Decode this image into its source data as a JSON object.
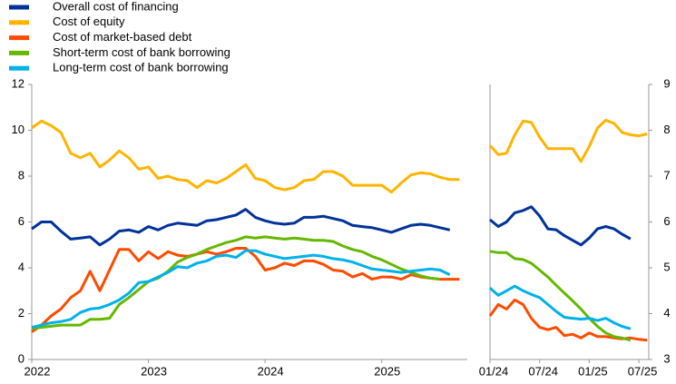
{
  "chart_data": [
    {
      "type": "line",
      "x": [
        0,
        1,
        2,
        3,
        4,
        5,
        6,
        7,
        8,
        9,
        10,
        11,
        12,
        13,
        14,
        15,
        16,
        17,
        18,
        19,
        20,
        21,
        22,
        23,
        24,
        25,
        26,
        27,
        28,
        29,
        30,
        31,
        32,
        33,
        34,
        35,
        36,
        37,
        38,
        39,
        40,
        41,
        42,
        43,
        44
      ],
      "xlim": [
        0,
        44.8
      ],
      "xticks": [
        {
          "value": 0,
          "label": "2022"
        },
        {
          "value": 12,
          "label": "2023"
        },
        {
          "value": 24,
          "label": "2024"
        },
        {
          "value": 36,
          "label": "2025"
        }
      ],
      "ylim": [
        0,
        12
      ],
      "yticks": [
        0,
        2,
        4,
        6,
        8,
        10,
        12
      ],
      "series": [
        {
          "name": "Overall cost of financing",
          "color": "#003299",
          "values": [
            5.7,
            6.0,
            6.0,
            5.6,
            5.25,
            5.3,
            5.35,
            5.0,
            5.25,
            5.6,
            5.65,
            5.55,
            5.8,
            5.65,
            5.85,
            5.95,
            5.9,
            5.85,
            6.05,
            6.1,
            6.2,
            6.3,
            6.55,
            6.2,
            6.05,
            5.95,
            5.9,
            5.95,
            6.2,
            6.2,
            6.25,
            6.15,
            6.05,
            5.85,
            5.8,
            5.75,
            5.65,
            5.55,
            5.7,
            5.85,
            5.9,
            5.85,
            5.75,
            5.65,
            null
          ]
        },
        {
          "name": "Cost of equity",
          "color": "#ffb400",
          "values": [
            10.1,
            10.4,
            10.2,
            9.9,
            9.0,
            8.8,
            9.0,
            8.4,
            8.7,
            9.1,
            8.8,
            8.3,
            8.4,
            7.9,
            8.0,
            7.85,
            7.8,
            7.5,
            7.8,
            7.7,
            7.9,
            8.2,
            8.5,
            7.9,
            7.8,
            7.5,
            7.4,
            7.5,
            7.8,
            7.85,
            8.2,
            8.2,
            8.0,
            7.6,
            7.6,
            7.6,
            7.6,
            7.3,
            7.7,
            8.05,
            8.15,
            8.1,
            7.95,
            7.85,
            7.85
          ]
        },
        {
          "name": "Cost of market-based debt",
          "color": "#ff4b00",
          "values": [
            1.2,
            1.5,
            1.9,
            2.2,
            2.7,
            3.0,
            3.85,
            3.0,
            3.9,
            4.8,
            4.8,
            4.3,
            4.7,
            4.4,
            4.7,
            4.55,
            4.5,
            4.6,
            4.7,
            4.6,
            4.7,
            4.85,
            4.85,
            4.5,
            3.9,
            4.0,
            4.2,
            4.1,
            4.3,
            4.3,
            4.15,
            3.9,
            3.85,
            3.6,
            3.75,
            3.5,
            3.6,
            3.6,
            3.5,
            3.7,
            3.6,
            3.55,
            3.5,
            3.5,
            3.5
          ]
        },
        {
          "name": "Short-term cost of bank borrowing",
          "color": "#65b800",
          "values": [
            1.35,
            1.4,
            1.45,
            1.5,
            1.5,
            1.5,
            1.75,
            1.75,
            1.8,
            2.4,
            2.7,
            3.05,
            3.4,
            3.55,
            3.85,
            4.25,
            4.45,
            4.6,
            4.8,
            4.95,
            5.1,
            5.2,
            5.35,
            5.3,
            5.35,
            5.3,
            5.25,
            5.3,
            5.25,
            5.2,
            5.2,
            5.15,
            4.95,
            4.8,
            4.7,
            4.5,
            4.35,
            4.15,
            3.95,
            3.8,
            3.65,
            3.55,
            3.5,
            null,
            null
          ]
        },
        {
          "name": "Long-term cost of bank borrowing",
          "color": "#00b1ea",
          "values": [
            1.4,
            1.5,
            1.6,
            1.65,
            1.75,
            2.05,
            2.2,
            2.25,
            2.4,
            2.6,
            2.9,
            3.35,
            3.4,
            3.6,
            3.8,
            4.05,
            4.0,
            4.2,
            4.3,
            4.5,
            4.55,
            4.45,
            4.75,
            4.75,
            4.6,
            4.5,
            4.4,
            4.45,
            4.5,
            4.55,
            4.5,
            4.4,
            4.35,
            4.25,
            4.1,
            3.95,
            3.9,
            3.85,
            3.8,
            3.85,
            3.9,
            3.95,
            3.9,
            3.7,
            null
          ]
        }
      ]
    },
    {
      "type": "line",
      "x": [
        0,
        1,
        2,
        3,
        4,
        5,
        6,
        7,
        8,
        9,
        10,
        11,
        12,
        13,
        14,
        15,
        16,
        17,
        18,
        19
      ],
      "xlim": [
        0,
        19.2
      ],
      "xticks": [
        {
          "value": 0,
          "label": "01/24"
        },
        {
          "value": 6,
          "label": "07/24"
        },
        {
          "value": 12,
          "label": "01/25"
        },
        {
          "value": 18,
          "label": "07/25"
        }
      ],
      "ylim": [
        3,
        9
      ],
      "yticks": [
        3,
        4,
        5,
        6,
        7,
        8,
        9
      ],
      "series": [
        {
          "color": "#003299",
          "values": [
            6.05,
            5.9,
            6.0,
            6.2,
            6.25,
            6.33,
            6.13,
            5.85,
            5.83,
            5.7,
            5.6,
            5.5,
            5.65,
            5.85,
            5.9,
            5.85,
            5.73,
            5.63,
            null,
            null
          ]
        },
        {
          "color": "#ffb400",
          "values": [
            7.67,
            7.47,
            7.5,
            7.9,
            8.2,
            8.17,
            7.85,
            7.6,
            7.6,
            7.6,
            7.6,
            7.32,
            7.65,
            8.05,
            8.22,
            8.15,
            7.95,
            7.9,
            7.88,
            7.92
          ]
        },
        {
          "color": "#ff4b00",
          "values": [
            3.95,
            4.2,
            4.1,
            4.3,
            4.2,
            3.9,
            3.7,
            3.65,
            3.7,
            3.52,
            3.55,
            3.47,
            3.58,
            3.5,
            3.5,
            3.47,
            3.45,
            3.47,
            3.44,
            3.42
          ]
        },
        {
          "color": "#65b800",
          "values": [
            5.36,
            5.33,
            5.33,
            5.2,
            5.18,
            5.1,
            4.95,
            4.8,
            4.62,
            4.45,
            4.28,
            4.1,
            3.9,
            3.72,
            3.58,
            3.5,
            3.47,
            3.42,
            null,
            null
          ]
        },
        {
          "color": "#00b1ea",
          "values": [
            4.56,
            4.4,
            4.5,
            4.6,
            4.5,
            4.42,
            4.35,
            4.2,
            4.05,
            3.92,
            3.9,
            3.88,
            3.9,
            3.85,
            3.9,
            3.8,
            3.72,
            3.67,
            null,
            null
          ]
        }
      ]
    }
  ]
}
